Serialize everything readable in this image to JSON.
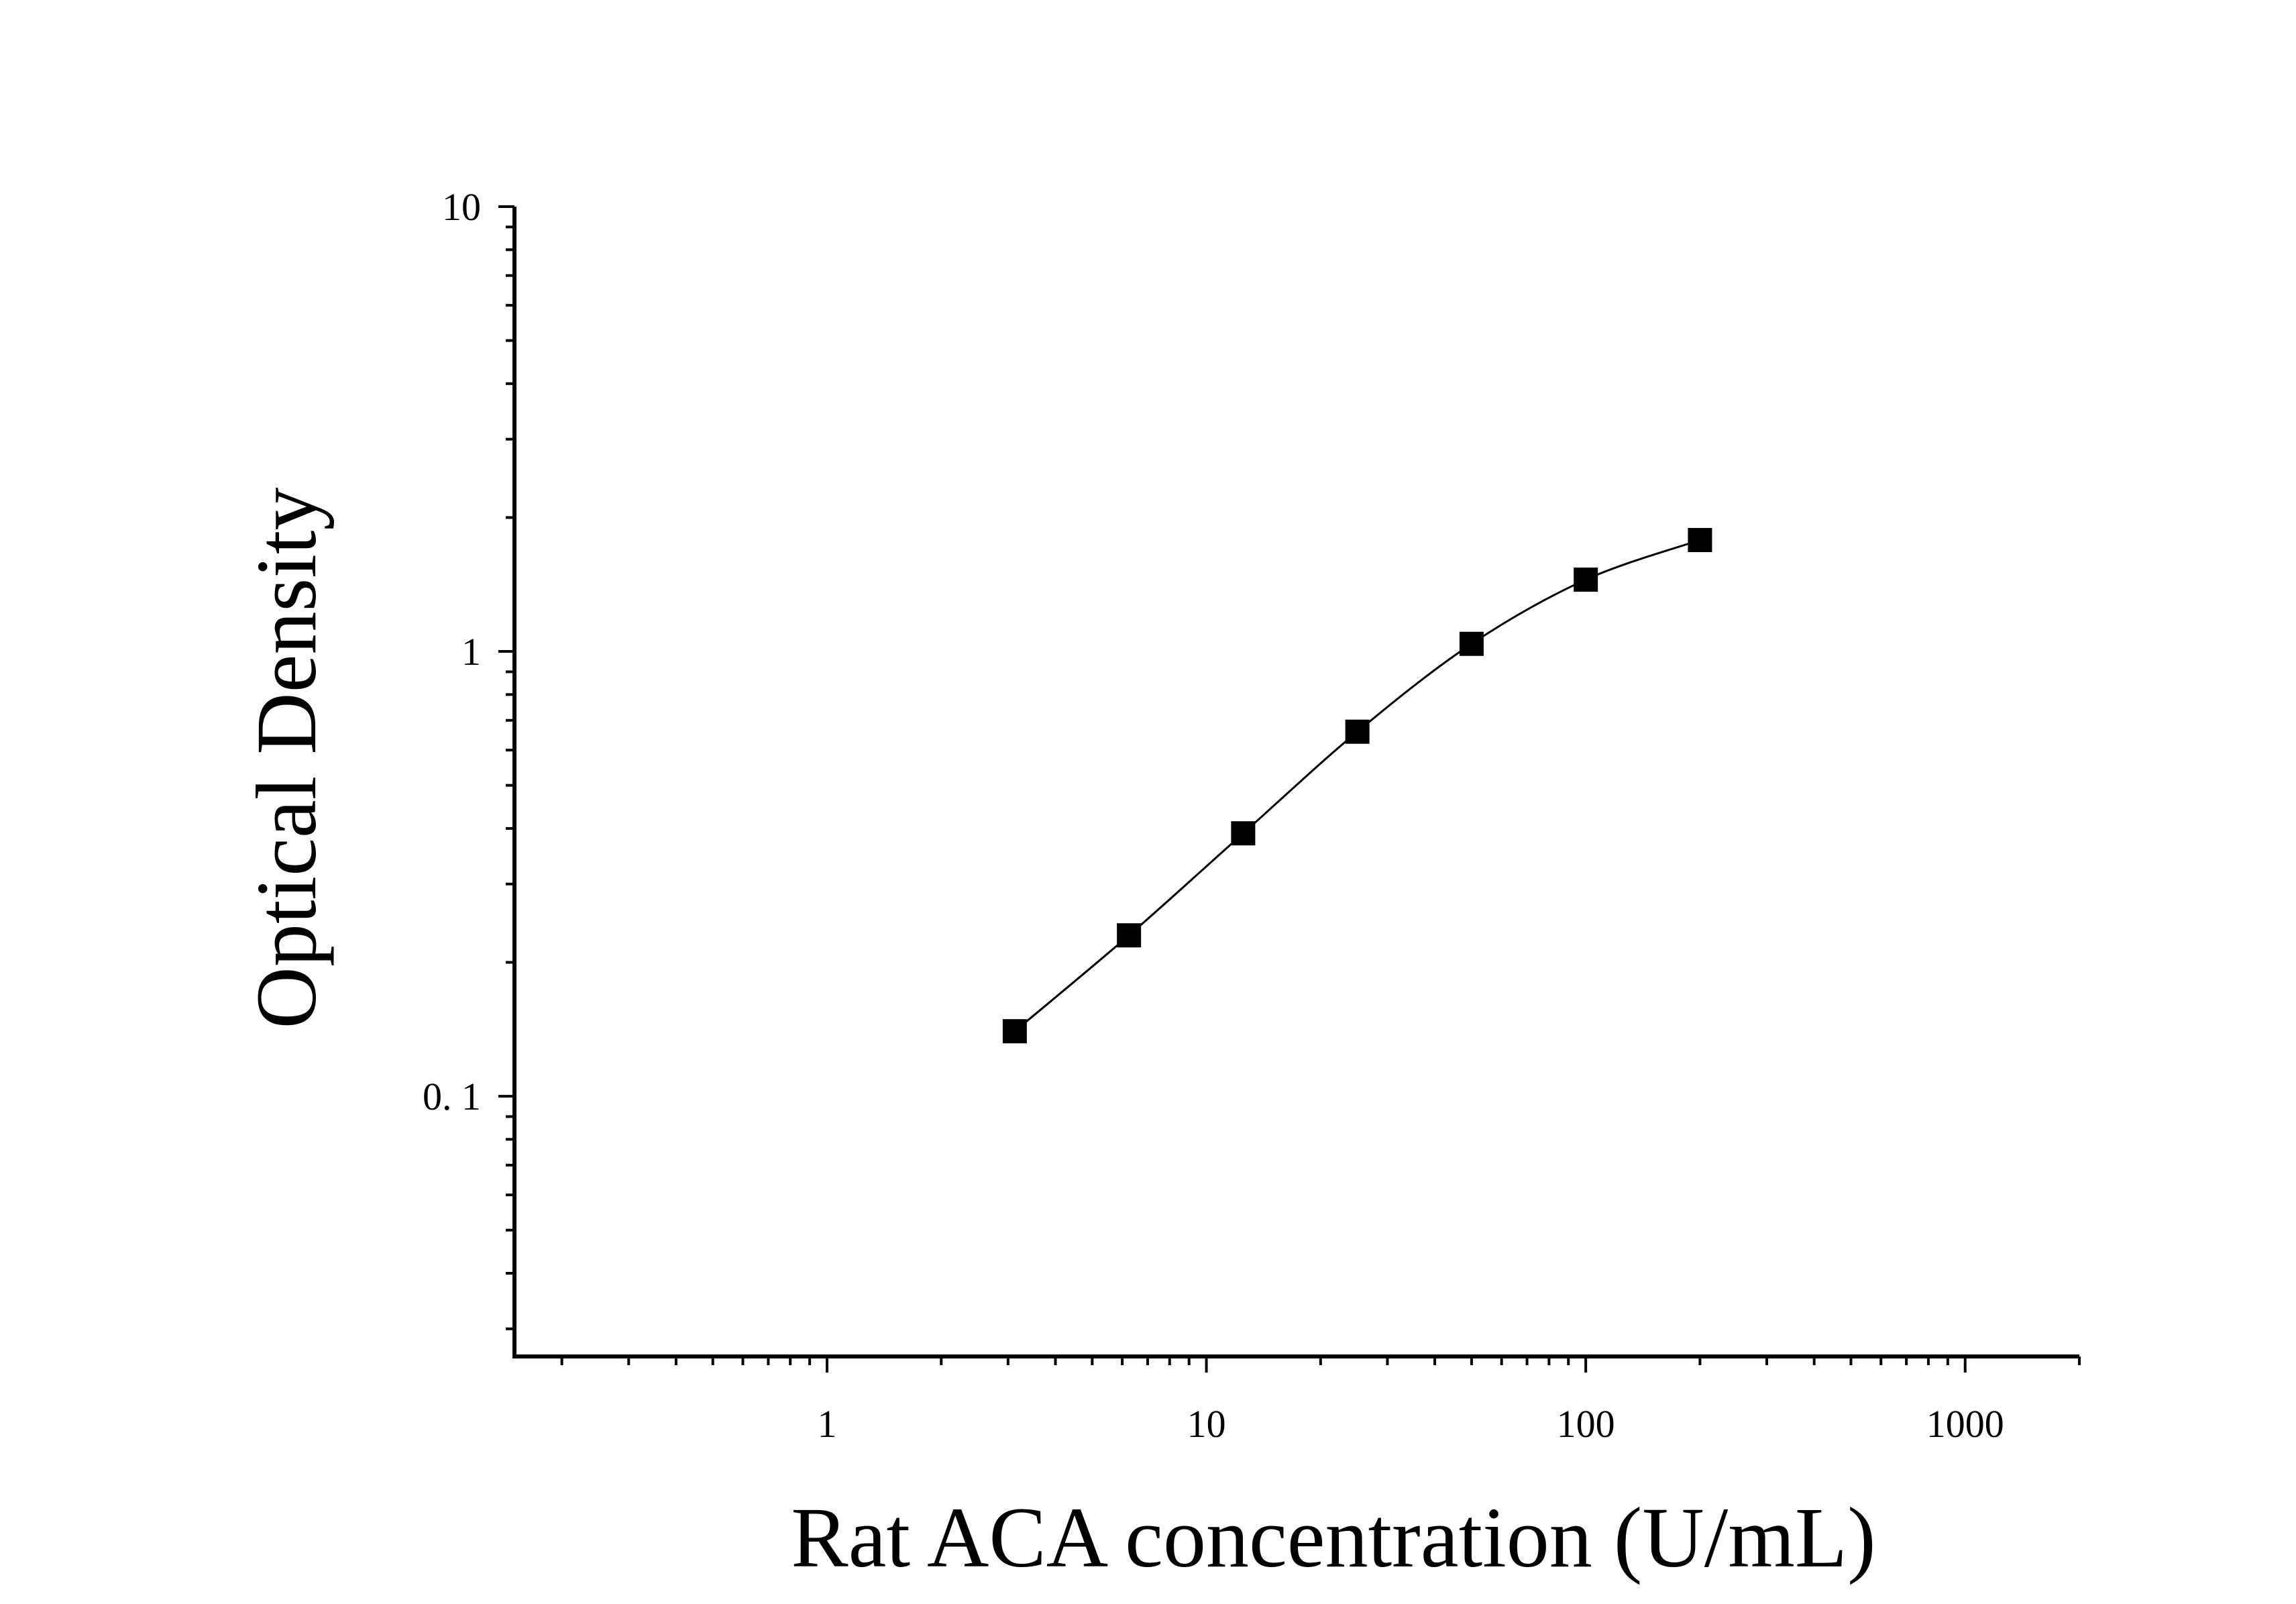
{
  "chart_data": {
    "type": "scatter",
    "xscale": "log",
    "yscale": "log",
    "xlabel": "Rat ACA concentration (U/mL)",
    "ylabel": "Optical Density",
    "xlim": [
      0.15,
      2000
    ],
    "ylim": [
      0.026,
      10
    ],
    "x_ticks": [
      {
        "value": 1,
        "label": "1"
      },
      {
        "value": 10,
        "label": "10"
      },
      {
        "value": 100,
        "label": "100"
      },
      {
        "value": 1000,
        "label": "1000"
      }
    ],
    "y_ticks": [
      {
        "value": 10,
        "label": "10"
      },
      {
        "value": 1,
        "label": "1"
      },
      {
        "value": 0.1,
        "label": "0. 1"
      }
    ],
    "series": [
      {
        "marker": "square",
        "color": "#000000",
        "fit_curve": true,
        "points": [
          {
            "x": 3.125,
            "y": 0.14
          },
          {
            "x": 6.25,
            "y": 0.23
          },
          {
            "x": 12.5,
            "y": 0.39
          },
          {
            "x": 25,
            "y": 0.66
          },
          {
            "x": 50,
            "y": 1.04
          },
          {
            "x": 100,
            "y": 1.45
          },
          {
            "x": 200,
            "y": 1.78
          }
        ]
      }
    ],
    "grid": false,
    "legend": "none"
  }
}
